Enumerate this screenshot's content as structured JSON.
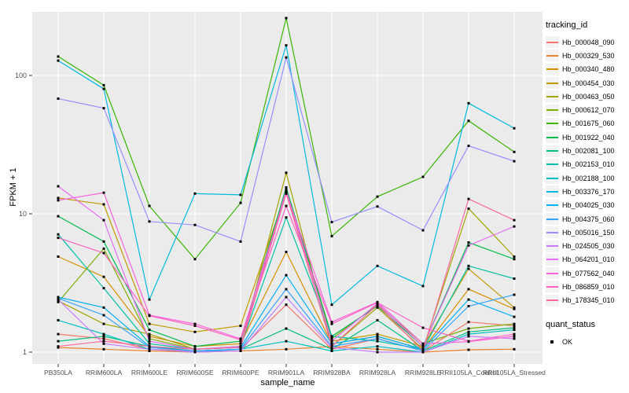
{
  "figure": {
    "panel_background": "#EBEBEB",
    "grid_color": "#FFFFFF",
    "tick_text_color": "#4D4D4D",
    "marker_color": "#000000"
  },
  "axes": {
    "x": {
      "label": "sample_name"
    },
    "y": {
      "label": "FPKM + 1",
      "tick_labels": [
        "100",
        "10",
        "1"
      ]
    }
  },
  "legend": {
    "tracking_title": "tracking_id",
    "quant_title": "quant_status",
    "quant_items": [
      {
        "label": "OK"
      }
    ]
  },
  "chart_data": {
    "type": "line",
    "title": "",
    "xlabel": "sample_name",
    "ylabel": "FPKM + 1",
    "yscale": "log10",
    "ylim": [
      1,
      300
    ],
    "y_major_ticks": [
      1,
      10,
      100
    ],
    "y_minor_gridlines": [
      3.162,
      31.62
    ],
    "grid": true,
    "legend_position": "right",
    "point_marker": "small-black-square",
    "categories": [
      "PB350LA",
      "RRIM600LA",
      "RRIM600LE",
      "RRIM600SE",
      "RRIM600PE",
      "RRIM901LA",
      "RRIM928BA",
      "RRIM928LA",
      "RRIM928LE",
      "RRII105LA_Control",
      "RRII105LA_Stressed"
    ],
    "series": [
      {
        "name": "Hb_000048_090",
        "color": "#F8766D",
        "values": [
          1.35,
          1.25,
          1.05,
          1.02,
          1.05,
          2.2,
          1.05,
          1.25,
          1.02,
          1.65,
          1.55
        ]
      },
      {
        "name": "Hb_000329_530",
        "color": "#EA8331",
        "values": [
          1.08,
          1.05,
          1.02,
          1.0,
          1.02,
          1.05,
          1.1,
          1.05,
          1.0,
          1.04,
          1.05
        ]
      },
      {
        "name": "Hb_000340_480",
        "color": "#D89000",
        "values": [
          4.9,
          3.5,
          1.3,
          1.1,
          1.15,
          5.3,
          1.15,
          1.3,
          1.05,
          2.85,
          2.05
        ]
      },
      {
        "name": "Hb_000454_030",
        "color": "#C09B00",
        "values": [
          13.0,
          11.7,
          1.6,
          1.4,
          1.55,
          14.5,
          1.2,
          1.35,
          1.1,
          4.0,
          2.1
        ]
      },
      {
        "name": "Hb_000463_050",
        "color": "#A3A500",
        "values": [
          2.35,
          1.6,
          1.35,
          1.05,
          1.1,
          19.8,
          1.1,
          2.1,
          1.05,
          10.9,
          4.9
        ]
      },
      {
        "name": "Hb_000612_070",
        "color": "#7CAE00",
        "values": [
          2.3,
          5.6,
          1.25,
          1.05,
          1.08,
          15.0,
          1.25,
          2.2,
          1.15,
          1.48,
          1.6
        ]
      },
      {
        "name": "Hb_001675_060",
        "color": "#39B600",
        "values": [
          137,
          85,
          11.4,
          4.7,
          12.0,
          260,
          6.9,
          13.3,
          18.5,
          47,
          28
        ]
      },
      {
        "name": "Hb_001922_040",
        "color": "#00BB4E",
        "values": [
          9.6,
          6.3,
          1.45,
          1.1,
          1.2,
          15.5,
          1.3,
          2.15,
          1.1,
          6.2,
          4.7
        ]
      },
      {
        "name": "Hb_002081_100",
        "color": "#00BF7D",
        "values": [
          1.2,
          1.3,
          1.1,
          1.02,
          1.05,
          1.48,
          1.05,
          1.7,
          1.02,
          1.4,
          1.5
        ]
      },
      {
        "name": "Hb_002153_010",
        "color": "#00C1A3",
        "values": [
          7.1,
          2.9,
          1.15,
          1.05,
          1.1,
          9.4,
          1.3,
          1.2,
          1.05,
          4.2,
          3.4
        ]
      },
      {
        "name": "Hb_002188_100",
        "color": "#00BFC4",
        "values": [
          1.7,
          1.35,
          1.05,
          1.0,
          1.05,
          1.2,
          1.02,
          1.1,
          1.0,
          1.35,
          1.45
        ]
      },
      {
        "name": "Hb_003376_170",
        "color": "#00BAE0",
        "values": [
          128,
          80,
          2.4,
          14.0,
          13.7,
          165,
          2.2,
          4.2,
          3.0,
          63,
          41.5
        ]
      },
      {
        "name": "Hb_004025_030",
        "color": "#00B0F6",
        "values": [
          2.5,
          2.1,
          1.1,
          1.05,
          1.08,
          3.6,
          1.15,
          1.3,
          1.05,
          2.4,
          1.8
        ]
      },
      {
        "name": "Hb_004375_060",
        "color": "#35A2FF",
        "values": [
          2.45,
          1.85,
          1.08,
          1.02,
          1.05,
          2.85,
          1.1,
          1.25,
          1.02,
          2.15,
          2.6
        ]
      },
      {
        "name": "Hb_005016_150",
        "color": "#9590FF",
        "values": [
          68,
          58,
          8.8,
          8.3,
          6.3,
          135,
          8.7,
          11.3,
          7.6,
          31,
          24
        ]
      },
      {
        "name": "Hb_024505_030",
        "color": "#C77CFF",
        "values": [
          2.4,
          1.15,
          1.05,
          1.0,
          1.02,
          2.5,
          1.08,
          1.0,
          1.0,
          1.3,
          1.25
        ]
      },
      {
        "name": "Hb_064201_010",
        "color": "#E76BF3",
        "values": [
          15.8,
          9.0,
          1.2,
          1.05,
          1.1,
          14.8,
          1.2,
          2.25,
          1.1,
          5.9,
          8.1
        ]
      },
      {
        "name": "Hb_077562_040",
        "color": "#FA62DB",
        "values": [
          12.5,
          14.2,
          1.85,
          1.6,
          1.25,
          14.2,
          1.65,
          2.3,
          1.15,
          1.19,
          1.3
        ]
      },
      {
        "name": "Hb_086859_010",
        "color": "#FF61C3",
        "values": [
          6.7,
          5.2,
          1.83,
          1.55,
          1.23,
          11.4,
          1.6,
          2.28,
          1.5,
          1.2,
          1.35
        ]
      },
      {
        "name": "Hb_178345_010",
        "color": "#FF689E",
        "values": [
          1.1,
          1.2,
          1.1,
          1.05,
          1.08,
          14.0,
          1.1,
          2.2,
          1.02,
          12.8,
          9.0
        ]
      }
    ]
  }
}
